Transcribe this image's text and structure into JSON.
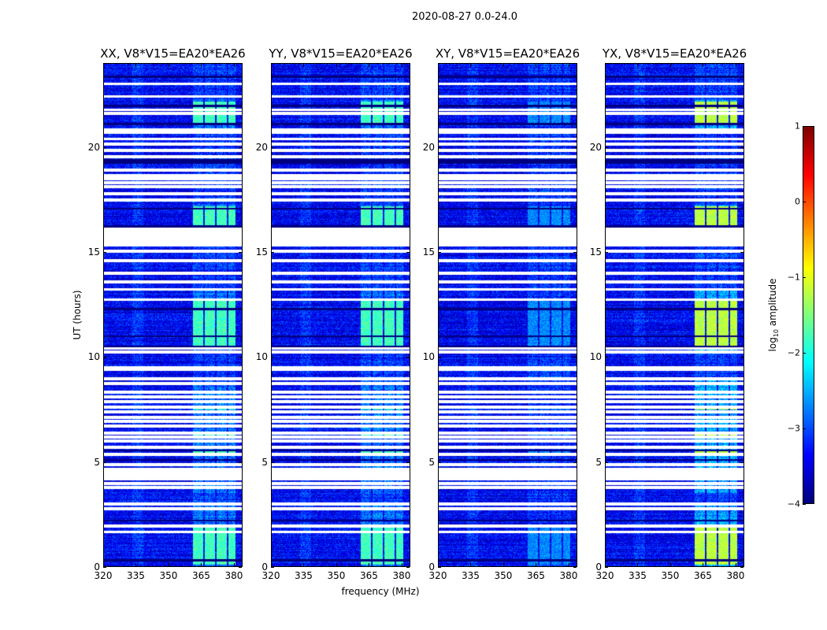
{
  "chart_data": {
    "type": "heatmap",
    "title": "2020-08-27 0.0-24.0",
    "xlabel": "frequency (MHz)",
    "ylabel": "UT (hours)",
    "xlim": [
      320,
      384
    ],
    "ylim": [
      0,
      24
    ],
    "xticks": [
      320,
      335,
      350,
      365,
      380
    ],
    "yticks": [
      0,
      5,
      10,
      15,
      20
    ],
    "colormap": "jet",
    "colorbar": {
      "label_prefix": "log",
      "label_sub": "10",
      "label_suffix": " amplitude",
      "range": [
        -4,
        1
      ],
      "ticks": [
        "1",
        "0",
        "−1",
        "−2",
        "−3",
        "−4"
      ],
      "tick_values": [
        1,
        0,
        -1,
        -2,
        -3,
        -4
      ],
      "placement": "right"
    },
    "background_log_amplitude": -3.4,
    "flagged_block_hours": [
      [
        15.28,
        16.18
      ]
    ],
    "flagged_row_hours": [
      23.06,
      22.46,
      21.82,
      21.64,
      20.85,
      20.75,
      20.43,
      20.17,
      19.87,
      19.57,
      18.94,
      18.67,
      18.52,
      18.34,
      18.15,
      17.81,
      17.51,
      15.07,
      14.62,
      14.02,
      13.61,
      13.24,
      12.75,
      10.42,
      10.24,
      9.5,
      9.4,
      8.96,
      8.74,
      8.32,
      8.1,
      7.87,
      7.61,
      7.39,
      7.12,
      6.94,
      6.71,
      6.37,
      6.19,
      6.0,
      5.7,
      5.36,
      4.87,
      4.65,
      4.5,
      4.35,
      4.2,
      3.97,
      3.79,
      3.0,
      2.77,
      1.95,
      1.65
    ],
    "dark_row_hours": [
      23.4,
      22.0,
      21.15,
      19.4,
      19.3,
      17.1,
      16.25,
      12.3,
      11.0,
      10.5,
      5.55,
      5.1,
      2.2,
      0.3
    ],
    "bright_channel_bands_mhz": [
      [
        361,
        366
      ],
      [
        366.5,
        371.5
      ],
      [
        372,
        377
      ],
      [
        377.5,
        381
      ]
    ],
    "bright_time_ranges_hours": [
      [
        21.2,
        22.2
      ],
      [
        16.2,
        17.2
      ],
      [
        10.5,
        12.8
      ],
      [
        0.1,
        1.9
      ],
      [
        5.3,
        5.5
      ],
      [
        6.2,
        6.4
      ],
      [
        7.5,
        7.7
      ]
    ],
    "panels": [
      {
        "title": "XX, V8*V15=EA20*EA26",
        "rfi_log_amplitude": -1.8
      },
      {
        "title": "YY, V8*V15=EA20*EA26",
        "rfi_log_amplitude": -1.8
      },
      {
        "title": "XY, V8*V15=EA20*EA26",
        "rfi_log_amplitude": -2.7
      },
      {
        "title": "YX, V8*V15=EA20*EA26",
        "rfi_log_amplitude": -1.2
      }
    ]
  }
}
